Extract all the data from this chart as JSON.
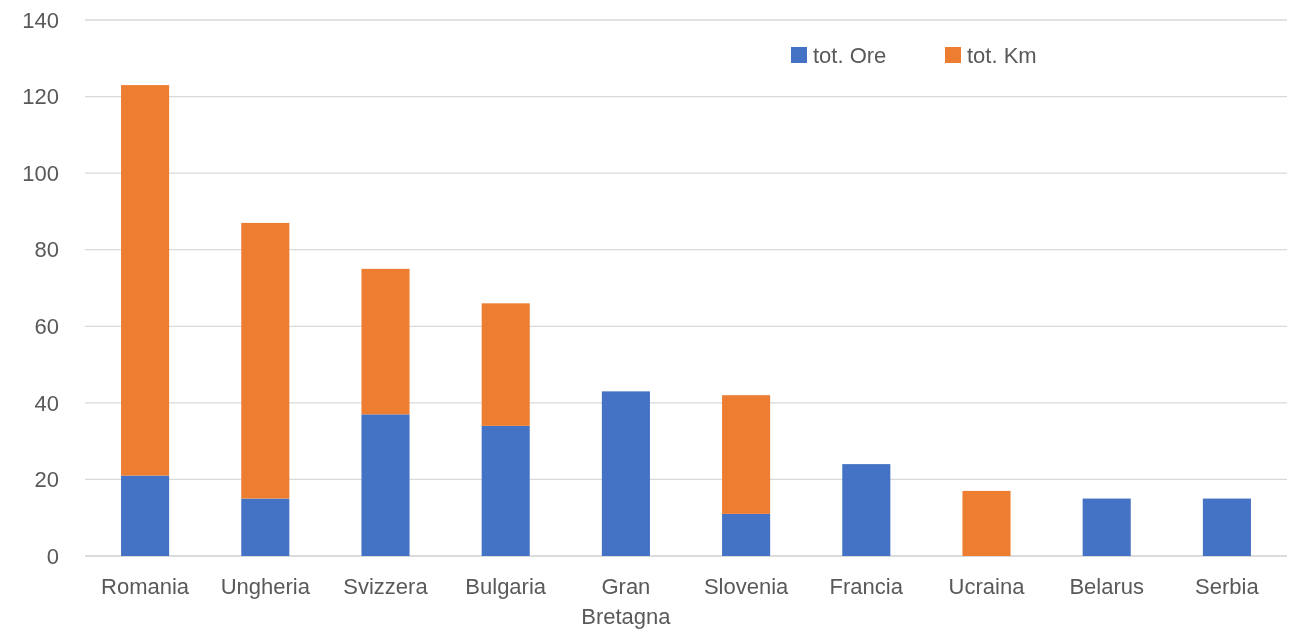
{
  "chart_data": {
    "type": "bar",
    "stacked": true,
    "categories": [
      "Romania",
      "Ungheria",
      "Svizzera",
      "Bulgaria",
      "Gran Bretagna",
      "Slovenia",
      "Francia",
      "Ucraina",
      "Belarus",
      "Serbia"
    ],
    "series": [
      {
        "name": "tot. Ore",
        "color": "#4472c4",
        "values": [
          21,
          15,
          37,
          34,
          43,
          11,
          24,
          0,
          15,
          15
        ]
      },
      {
        "name": "tot. Km",
        "color": "#ed7d31",
        "values": [
          102,
          72,
          38,
          32,
          0,
          31,
          0,
          17,
          0,
          0
        ]
      }
    ],
    "ylim": [
      0,
      140
    ],
    "yticks": [
      0,
      20,
      40,
      60,
      80,
      100,
      120,
      140
    ],
    "grid": "y",
    "legend": "top right"
  }
}
